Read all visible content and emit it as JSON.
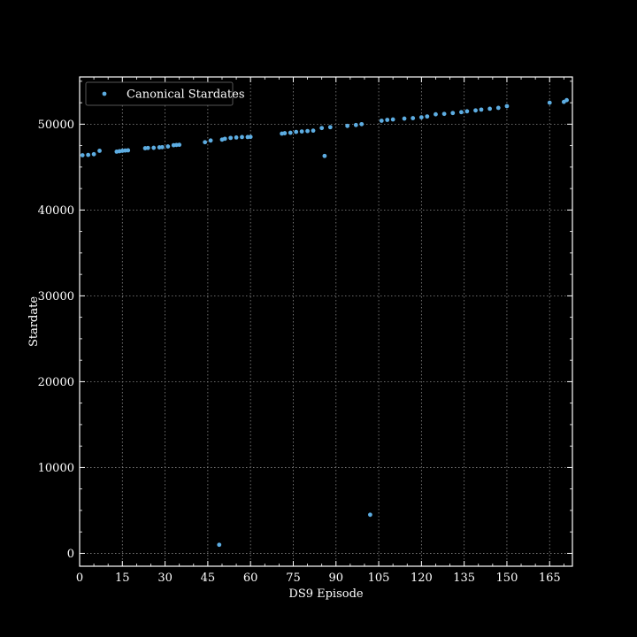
{
  "chart_data": {
    "type": "scatter",
    "title": "",
    "xlabel": "DS9 Episode",
    "ylabel": "Stardate",
    "xlim": [
      0,
      173
    ],
    "ylim": [
      -1500,
      55500
    ],
    "x_ticks": [
      0,
      15,
      30,
      45,
      60,
      75,
      90,
      105,
      120,
      135,
      150,
      165
    ],
    "y_ticks": [
      0,
      10000,
      20000,
      30000,
      40000,
      50000
    ],
    "x_minor_step": 5,
    "y_minor_step": 2500,
    "grid": true,
    "legend_position": "top-left",
    "colors": {
      "background": "#000000",
      "foreground": "#ffffff",
      "grid": "#8c8c8c",
      "points": "#5dade2"
    },
    "series": [
      {
        "name": "Canonical Stardates",
        "points": [
          [
            1,
            46380
          ],
          [
            3,
            46420
          ],
          [
            5,
            46500
          ],
          [
            7,
            46900
          ],
          [
            13,
            46800
          ],
          [
            14,
            46850
          ],
          [
            15,
            46900
          ],
          [
            16,
            46930
          ],
          [
            17,
            46950
          ],
          [
            23,
            47200
          ],
          [
            24,
            47230
          ],
          [
            26,
            47250
          ],
          [
            28,
            47300
          ],
          [
            29,
            47320
          ],
          [
            31,
            47400
          ],
          [
            33,
            47550
          ],
          [
            34,
            47580
          ],
          [
            35,
            47600
          ],
          [
            44,
            47900
          ],
          [
            46,
            48100
          ],
          [
            50,
            48200
          ],
          [
            51,
            48300
          ],
          [
            53,
            48400
          ],
          [
            55,
            48450
          ],
          [
            57,
            48500
          ],
          [
            59,
            48500
          ],
          [
            60,
            48520
          ],
          [
            49,
            1000
          ],
          [
            71,
            48900
          ],
          [
            72,
            48950
          ],
          [
            74,
            49000
          ],
          [
            76,
            49100
          ],
          [
            78,
            49150
          ],
          [
            80,
            49200
          ],
          [
            82,
            49250
          ],
          [
            85,
            49550
          ],
          [
            86,
            46300
          ],
          [
            88,
            49650
          ],
          [
            94,
            49800
          ],
          [
            97,
            49900
          ],
          [
            99,
            50000
          ],
          [
            102,
            4500
          ],
          [
            106,
            50400
          ],
          [
            108,
            50500
          ],
          [
            110,
            50550
          ],
          [
            114,
            50650
          ],
          [
            117,
            50700
          ],
          [
            120,
            50800
          ],
          [
            122,
            50900
          ],
          [
            125,
            51150
          ],
          [
            128,
            51200
          ],
          [
            131,
            51300
          ],
          [
            134,
            51400
          ],
          [
            136,
            51500
          ],
          [
            139,
            51600
          ],
          [
            141,
            51700
          ],
          [
            144,
            51800
          ],
          [
            147,
            51900
          ],
          [
            150,
            52100
          ],
          [
            165,
            52500
          ],
          [
            170,
            52600
          ],
          [
            171,
            52800
          ]
        ]
      }
    ]
  }
}
